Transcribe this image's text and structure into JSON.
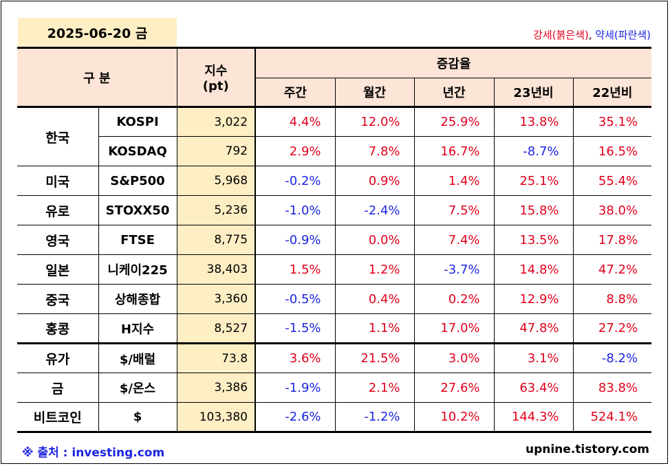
{
  "date": "2025-06-20 금",
  "legend": {
    "strong": "강세(붉은색)",
    "sep": ", ",
    "weak": "약세(파란색)"
  },
  "header": {
    "category": "구 분",
    "index_line1": "지수",
    "index_line2": "(pt)",
    "change_group": "증감율",
    "cols": [
      "주간",
      "월간",
      "년간",
      "23년비",
      "22년비"
    ]
  },
  "rows": [
    {
      "region": "한국",
      "ticker": "KOSPI",
      "index": "3,022",
      "values": [
        "4.4%",
        "12.0%",
        "25.9%",
        "13.8%",
        "35.1%"
      ]
    },
    {
      "region": "",
      "ticker": "KOSDAQ",
      "index": "792",
      "values": [
        "2.9%",
        "7.8%",
        "16.7%",
        "-8.7%",
        "16.5%"
      ]
    },
    {
      "region": "미국",
      "ticker": "S&P500",
      "index": "5,968",
      "values": [
        "-0.2%",
        "0.9%",
        "1.4%",
        "25.1%",
        "55.4%"
      ]
    },
    {
      "region": "유로",
      "ticker": "STOXX50",
      "index": "5,236",
      "values": [
        "-1.0%",
        "-2.4%",
        "7.5%",
        "15.8%",
        "38.0%"
      ]
    },
    {
      "region": "영국",
      "ticker": "FTSE",
      "index": "8,775",
      "values": [
        "-0.9%",
        "0.0%",
        "7.4%",
        "13.5%",
        "17.8%"
      ]
    },
    {
      "region": "일본",
      "ticker": "니케이225",
      "index": "38,403",
      "values": [
        "1.5%",
        "1.2%",
        "-3.7%",
        "14.8%",
        "47.2%"
      ]
    },
    {
      "region": "중국",
      "ticker": "상해종합",
      "index": "3,360",
      "values": [
        "-0.5%",
        "0.4%",
        "0.2%",
        "12.9%",
        "8.8%"
      ]
    },
    {
      "region": "홍콩",
      "ticker": "H지수",
      "index": "8,527",
      "values": [
        "-1.5%",
        "1.1%",
        "17.0%",
        "47.8%",
        "27.2%"
      ]
    },
    {
      "region": "유가",
      "ticker": "$/배럴",
      "index": "73.8",
      "values": [
        "3.6%",
        "21.5%",
        "3.0%",
        "3.1%",
        "-8.2%"
      ]
    },
    {
      "region": "금",
      "ticker": "$/온스",
      "index": "3,386",
      "values": [
        "-1.9%",
        "2.1%",
        "27.6%",
        "63.4%",
        "83.8%"
      ]
    },
    {
      "region": "비트코인",
      "ticker": "$",
      "index": "103,380",
      "values": [
        "-2.6%",
        "-1.2%",
        "10.2%",
        "144.3%",
        "524.1%"
      ]
    }
  ],
  "colors": {
    "up": "#e0001b",
    "down": "#1a24e0",
    "header_bg": "#fce4d6",
    "index_bg": "#fdeec4"
  },
  "footer": {
    "source": "※ 출처 : investing.com",
    "site": "upnine.tistory.com"
  }
}
